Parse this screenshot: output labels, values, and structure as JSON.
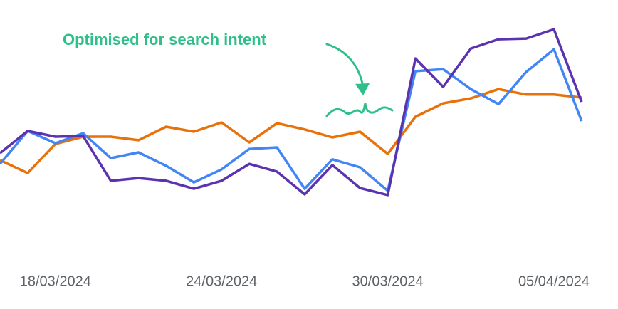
{
  "chart_data": {
    "type": "line",
    "annotation": "Optimised for search intent",
    "categories": [
      null,
      null,
      "18/03/2024",
      null,
      null,
      null,
      null,
      null,
      "24/03/2024",
      null,
      null,
      null,
      null,
      null,
      "30/03/2024",
      null,
      null,
      null,
      null,
      null,
      "05/04/2024",
      null
    ],
    "ylim": [
      0,
      100
    ],
    "series": [
      {
        "color": "#e8710a",
        "values": [
          38.6,
          33.4,
          45.1,
          48,
          48,
          46.6,
          52,
          50,
          53.7,
          45.7,
          53.4,
          50.9,
          47.7,
          50,
          41.1,
          56,
          61.4,
          63.4,
          67.1,
          64.9,
          64.9,
          63.7
        ]
      },
      {
        "color": "#4285f4",
        "values": [
          37.1,
          50.3,
          45.4,
          49.4,
          39.4,
          41.7,
          36.3,
          29.7,
          34.9,
          43.1,
          43.7,
          27.1,
          38.9,
          35.7,
          26.3,
          74.3,
          75.1,
          67.1,
          61.1,
          74,
          83.1,
          54.3
        ]
      },
      {
        "color": "#5b33b0",
        "values": [
          41.4,
          50.3,
          48,
          48.3,
          30.3,
          31.4,
          30.3,
          27.1,
          30.3,
          37.1,
          34,
          24.9,
          36.6,
          27.4,
          24.6,
          79.4,
          68,
          83.4,
          87.1,
          87.4,
          91.1,
          62
        ]
      }
    ]
  }
}
